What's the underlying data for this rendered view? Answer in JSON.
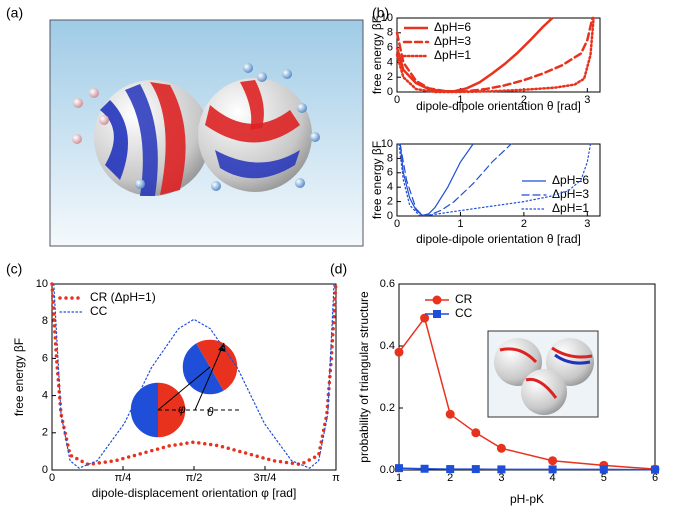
{
  "panel_a": {
    "label": "(a)"
  },
  "chart_data": [
    {
      "type": "line",
      "label": "(b)",
      "xlabel": "dipole-dipole orientation θ [rad]",
      "ylabel": "free energy βF",
      "xlim": [
        0,
        3.2
      ],
      "ylim": [
        0,
        10
      ],
      "xticks": [
        0,
        1,
        2,
        3
      ],
      "yticks": [
        0,
        2,
        4,
        6,
        8,
        10
      ],
      "legend": "upper left",
      "series": [
        {
          "name": "ΔpH=6",
          "color": "#e8321e",
          "dash": "solid",
          "width": 2.5,
          "x": [
            0,
            0.1,
            0.3,
            0.5,
            0.7,
            0.9,
            1.1,
            1.3,
            1.5,
            1.7,
            1.9,
            2.1,
            2.3,
            2.45
          ],
          "values": [
            6,
            3,
            1.2,
            0.4,
            0.1,
            0.1,
            0.5,
            1.3,
            2.5,
            3.8,
            5.3,
            7,
            8.8,
            10
          ]
        },
        {
          "name": "ΔpH=3",
          "color": "#e8321e",
          "dash": "dashed",
          "width": 2.5,
          "x": [
            0,
            0.1,
            0.3,
            0.5,
            0.8,
            1.1,
            1.4,
            1.7,
            2.0,
            2.3,
            2.6,
            2.9,
            3.0,
            3.08
          ],
          "values": [
            8,
            4,
            1.5,
            0.5,
            0.05,
            0.1,
            0.4,
            0.9,
            1.6,
            2.5,
            3.6,
            5.2,
            7,
            10
          ]
        },
        {
          "name": "ΔpH=1",
          "color": "#e8321e",
          "dash": "dotted",
          "width": 2.5,
          "x": [
            0,
            0.1,
            0.3,
            0.6,
            1.0,
            1.5,
            2.0,
            2.5,
            2.8,
            2.95,
            3.05,
            3.1
          ],
          "values": [
            5,
            2,
            0.4,
            0,
            0,
            0.1,
            0.3,
            0.6,
            1.0,
            1.8,
            5,
            10
          ]
        }
      ]
    },
    {
      "type": "line",
      "xlabel": "dipole-dipole orientation θ [rad]",
      "ylabel": "free energy βF",
      "xlim": [
        0,
        3.2
      ],
      "ylim": [
        0,
        10
      ],
      "xticks": [
        0,
        1,
        2,
        3
      ],
      "yticks": [
        0,
        2,
        4,
        6,
        8,
        10
      ],
      "legend": "lower right",
      "series": [
        {
          "name": "ΔpH=6",
          "color": "#1f4fd8",
          "dash": "solid",
          "width": 1.2,
          "x": [
            0.05,
            0.1,
            0.2,
            0.3,
            0.4,
            0.5,
            0.6,
            0.8,
            1.0,
            1.2
          ],
          "values": [
            10,
            6,
            2.5,
            0.8,
            0.1,
            0.3,
            1.2,
            4,
            7.5,
            10
          ]
        },
        {
          "name": "ΔpH=3",
          "color": "#1f4fd8",
          "dash": "dashed",
          "width": 1.2,
          "x": [
            0.05,
            0.15,
            0.3,
            0.4,
            0.5,
            0.7,
            0.9,
            1.2,
            1.5,
            1.8
          ],
          "values": [
            10,
            5,
            1,
            0.1,
            0.1,
            0.8,
            2,
            4.5,
            7.5,
            10
          ]
        },
        {
          "name": "ΔpH=1",
          "color": "#1f4fd8",
          "dash": "dotted",
          "width": 1.2,
          "x": [
            0.03,
            0.1,
            0.2,
            0.35,
            0.5,
            0.8,
            1.2,
            1.6,
            2.0,
            2.4,
            2.7,
            2.9,
            3.0,
            3.05
          ],
          "values": [
            10,
            5,
            1.5,
            0.1,
            0.1,
            0.5,
            1,
            1.5,
            2,
            2.7,
            3.5,
            5,
            7.5,
            10
          ]
        }
      ]
    },
    {
      "type": "line",
      "label": "(c)",
      "xlabel": "dipole-displacement orientation φ  [rad]",
      "ylabel": "free energy βF",
      "xlim": [
        0,
        3.1416
      ],
      "ylim": [
        0,
        10
      ],
      "xticks": [
        0,
        {
          "value": 0.7854,
          "label": "π/4"
        },
        {
          "value": 1.5708,
          "label": "π/2"
        },
        {
          "value": 2.3562,
          "label": "3π/4"
        },
        {
          "value": 3.1416,
          "label": "π"
        }
      ],
      "yticks": [
        0,
        2,
        4,
        6,
        8,
        10
      ],
      "legend": "upper left",
      "annotations": [
        "φ",
        "θ"
      ],
      "series": [
        {
          "name": "CR (ΔpH=1)",
          "color": "#e8321e",
          "dash": "bigdots",
          "width": 3.5,
          "x": [
            0,
            0.05,
            0.1,
            0.2,
            0.4,
            0.7,
            1.0,
            1.3,
            1.57,
            1.85,
            2.15,
            2.45,
            2.75,
            2.95,
            3.04,
            3.09,
            3.14
          ],
          "values": [
            10,
            6,
            3,
            0.8,
            0.3,
            0.5,
            0.9,
            1.3,
            1.5,
            1.3,
            0.9,
            0.5,
            0.3,
            0.8,
            3,
            6,
            10
          ]
        },
        {
          "name": "CC",
          "color": "#1f4fd8",
          "dash": "dotted",
          "width": 1.2,
          "x": [
            0.02,
            0.1,
            0.2,
            0.3,
            0.5,
            0.8,
            1.1,
            1.4,
            1.57,
            1.75,
            2.05,
            2.35,
            2.65,
            2.85,
            2.95,
            3.05,
            3.12
          ],
          "values": [
            10,
            3,
            0.5,
            0.1,
            0.5,
            2.5,
            5.5,
            7.6,
            8.1,
            7.6,
            5.5,
            2.5,
            0.5,
            0.1,
            0.5,
            3,
            10
          ]
        }
      ]
    },
    {
      "type": "line",
      "label": "(d)",
      "xlabel": "pH-pK",
      "ylabel": "probability of triangular structure",
      "xlim": [
        1,
        6
      ],
      "ylim": [
        0,
        0.6
      ],
      "xticks": [
        1,
        2,
        3,
        4,
        5,
        6
      ],
      "yticks": [
        {
          "value": 0,
          "label": "0.0"
        },
        0.2,
        0.4,
        0.6
      ],
      "legend": "upper left",
      "series": [
        {
          "name": "CR",
          "color": "#e8321e",
          "dash": "solid",
          "width": 1.5,
          "marker": "circle",
          "x": [
            1,
            1.5,
            2,
            2.5,
            3,
            4,
            5,
            6
          ],
          "values": [
            0.38,
            0.49,
            0.18,
            0.12,
            0.07,
            0.03,
            0.015,
            0.003
          ]
        },
        {
          "name": "CC",
          "color": "#1f4fd8",
          "dash": "solid",
          "width": 1.5,
          "marker": "square",
          "x": [
            1,
            1.5,
            2,
            2.5,
            3,
            4,
            5,
            6
          ],
          "values": [
            0.006,
            0.004,
            0.003,
            0.003,
            0.002,
            0.002,
            0.002,
            0.001
          ]
        }
      ]
    }
  ]
}
